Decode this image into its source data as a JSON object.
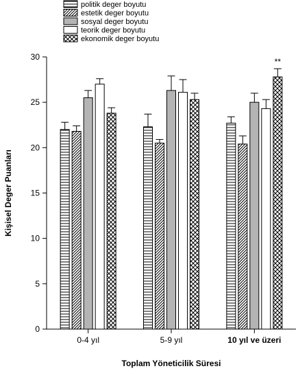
{
  "chart_data": {
    "type": "bar",
    "title": "",
    "xlabel": "Toplam Yöneticilik Süresi",
    "ylabel": "Kişisel Deger Puanları",
    "ylim": [
      0,
      30
    ],
    "yticks": [
      "0",
      "5",
      "10",
      "15",
      "20",
      "25",
      "30"
    ],
    "categories": [
      "0-4 yıl",
      "5-9 yıl",
      "10 yıl ve üzeri"
    ],
    "category_bold": [
      false,
      false,
      true
    ],
    "legend_position": "top-left",
    "series": [
      {
        "name": "politik deger boyutu",
        "pattern": "horizontal",
        "values": [
          22.0,
          22.3,
          22.7
        ],
        "errors": [
          0.8,
          1.4,
          0.7
        ]
      },
      {
        "name": "estetik deger boyutu",
        "pattern": "diagonal",
        "values": [
          21.8,
          20.5,
          20.4
        ],
        "errors": [
          0.6,
          0.4,
          0.9
        ]
      },
      {
        "name": "sosyal deger boyutu",
        "pattern": "gray",
        "values": [
          25.5,
          26.3,
          25.0
        ],
        "errors": [
          0.8,
          1.6,
          1.0
        ]
      },
      {
        "name": "teorik deger boyutu",
        "pattern": "white",
        "values": [
          27.0,
          26.1,
          24.3
        ],
        "errors": [
          0.6,
          1.4,
          1.0
        ]
      },
      {
        "name": "ekonomik deger boyutu",
        "pattern": "crosshatch",
        "values": [
          23.8,
          25.3,
          27.8
        ],
        "errors": [
          0.6,
          0.7,
          0.9
        ]
      }
    ],
    "annotations": [
      {
        "category": 2,
        "series": 4,
        "text": "**"
      }
    ],
    "colors": {
      "gray_fill": "#b4b4b4",
      "stroke": "#000000",
      "background": "#ffffff"
    }
  }
}
